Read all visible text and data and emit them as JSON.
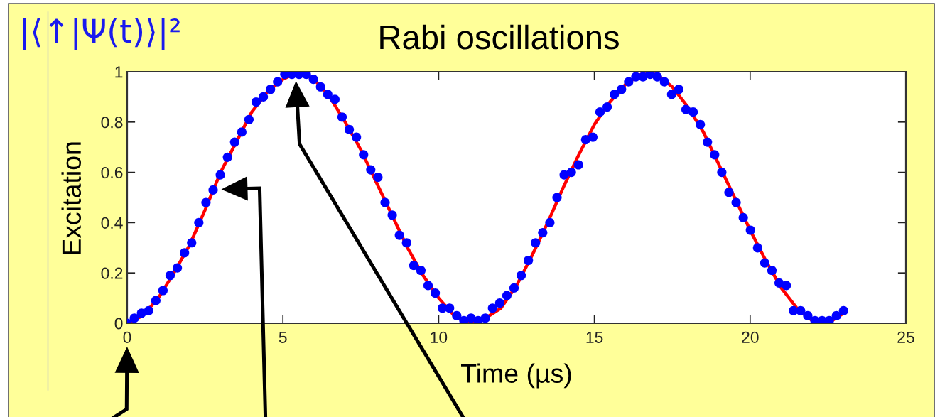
{
  "chart_data": {
    "type": "scatter",
    "title": "Rabi oscillations",
    "xlabel": "Time (µs)",
    "ylabel": "Excitation",
    "annotations": [
      "|⟨↑|Ψ(t)⟩|²"
    ],
    "xlim": [
      0,
      25
    ],
    "xticks": [
      0,
      5,
      10,
      15,
      20,
      25
    ],
    "ylim": [
      0,
      1
    ],
    "yticks": [
      0,
      0.2,
      0.4,
      0.6,
      0.8,
      1
    ],
    "series": [
      {
        "type": "line",
        "color": "#ff0000",
        "line_style": "solid",
        "x": [
          0,
          0.5,
          1,
          1.5,
          2,
          2.5,
          3,
          3.5,
          4,
          4.5,
          5,
          5.5,
          6,
          6.5,
          7,
          7.5,
          8,
          8.5,
          9,
          9.5,
          10,
          10.5,
          11,
          11.5,
          12,
          12.5,
          13,
          13.5,
          14,
          14.5,
          15,
          15.5,
          16,
          16.5,
          17,
          17.5,
          18,
          18.5,
          19,
          19.5,
          20,
          20.5,
          21,
          21.5,
          22,
          22.5,
          23
        ],
        "values": [
          0,
          0.03,
          0.1,
          0.2,
          0.31,
          0.45,
          0.6,
          0.72,
          0.84,
          0.92,
          0.97,
          1,
          0.97,
          0.9,
          0.8,
          0.69,
          0.56,
          0.43,
          0.3,
          0.19,
          0.1,
          0.03,
          0,
          0.02,
          0.06,
          0.15,
          0.27,
          0.4,
          0.54,
          0.67,
          0.79,
          0.88,
          0.95,
          0.99,
          0.99,
          0.94,
          0.86,
          0.76,
          0.63,
          0.5,
          0.37,
          0.25,
          0.14,
          0.06,
          0.01,
          0,
          0.04
        ]
      },
      {
        "color": "#0000ff",
        "marker": "circle",
        "x": [
          0,
          0.23,
          0.46,
          0.69,
          0.92,
          1.15,
          1.38,
          1.61,
          1.84,
          2.07,
          2.3,
          2.53,
          2.76,
          2.99,
          3.22,
          3.45,
          3.68,
          3.91,
          4.14,
          4.37,
          4.6,
          4.83,
          5.06,
          5.29,
          5.52,
          5.75,
          5.98,
          6.21,
          6.44,
          6.67,
          6.9,
          7.13,
          7.36,
          7.59,
          7.82,
          8.05,
          8.28,
          8.51,
          8.74,
          8.97,
          9.2,
          9.43,
          9.66,
          9.89,
          10.12,
          10.35,
          10.58,
          10.81,
          11.04,
          11.27,
          11.5,
          11.73,
          11.96,
          12.19,
          12.42,
          12.65,
          12.88,
          13.11,
          13.34,
          13.57,
          13.8,
          14.03,
          14.26,
          14.49,
          14.72,
          14.95,
          15.18,
          15.41,
          15.64,
          15.87,
          16.1,
          16.33,
          16.56,
          16.79,
          17.02,
          17.25,
          17.48,
          17.71,
          17.94,
          18.17,
          18.4,
          18.63,
          18.86,
          19.09,
          19.32,
          19.55,
          19.78,
          20.01,
          20.24,
          20.47,
          20.7,
          20.93,
          21.16,
          21.39,
          21.62,
          21.85,
          22.08,
          22.31,
          22.54,
          22.77,
          23
        ],
        "values": [
          0,
          0.02,
          0.04,
          0.05,
          0.09,
          0.13,
          0.19,
          0.22,
          0.28,
          0.32,
          0.4,
          0.48,
          0.53,
          0.59,
          0.66,
          0.72,
          0.76,
          0.81,
          0.88,
          0.9,
          0.93,
          0.96,
          0.99,
          0.99,
          0.99,
          0.99,
          0.97,
          0.94,
          0.91,
          0.89,
          0.82,
          0.77,
          0.74,
          0.67,
          0.61,
          0.58,
          0.48,
          0.43,
          0.35,
          0.32,
          0.23,
          0.21,
          0.15,
          0.12,
          0.06,
          0.06,
          0.03,
          0.01,
          0.02,
          0.01,
          0.02,
          0.06,
          0.08,
          0.11,
          0.14,
          0.19,
          0.25,
          0.32,
          0.36,
          0.4,
          0.5,
          0.59,
          0.6,
          0.63,
          0.73,
          0.74,
          0.84,
          0.86,
          0.91,
          0.93,
          0.96,
          0.98,
          0.98,
          0.99,
          0.98,
          0.96,
          0.91,
          0.93,
          0.85,
          0.84,
          0.79,
          0.72,
          0.67,
          0.6,
          0.52,
          0.48,
          0.42,
          0.37,
          0.3,
          0.24,
          0.21,
          0.16,
          0.15,
          0.05,
          0.05,
          0.03,
          0.01,
          0.01,
          0.01,
          0.03,
          0.05
        ]
      }
    ]
  }
}
